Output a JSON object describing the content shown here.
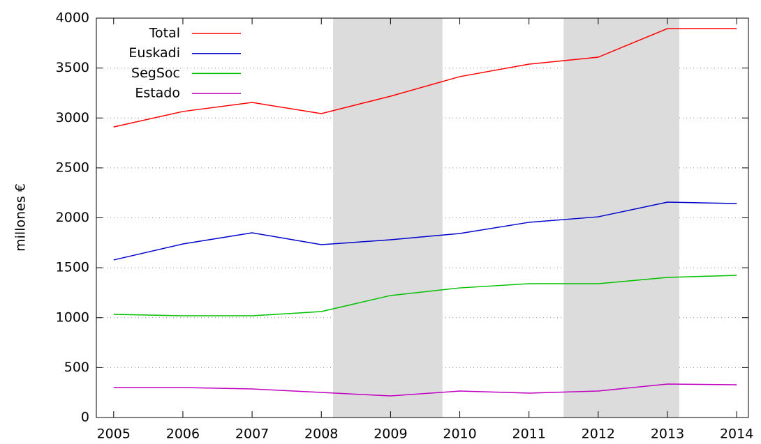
{
  "chart_data": {
    "type": "line",
    "y_label": "millones €",
    "x": [
      2005,
      2006,
      2007,
      2008,
      2009,
      2010,
      2011,
      2012,
      2013,
      2014
    ],
    "series": [
      {
        "name": "Total",
        "color": "#ff0000",
        "values": [
          2910,
          3065,
          3155,
          3044,
          3218,
          3414,
          3539,
          3609,
          3895,
          3895
        ]
      },
      {
        "name": "Euskadi",
        "color": "#0000cc",
        "values": [
          1578,
          1738,
          1850,
          1731,
          1780,
          1843,
          1955,
          2010,
          2157,
          2143
        ]
      },
      {
        "name": "SegSoc",
        "color": "#00c000",
        "values": [
          1033,
          1019,
          1019,
          1061,
          1222,
          1298,
          1340,
          1340,
          1403,
          1424
        ]
      },
      {
        "name": "Estado",
        "color": "#c000c0",
        "values": [
          300,
          300,
          286,
          251,
          216,
          265,
          244,
          265,
          335,
          328
        ]
      }
    ],
    "shaded_regions": [
      [
        2008.17,
        2009.75
      ],
      [
        2011.5,
        2013.17
      ]
    ],
    "shade_color": "#dcdcdc",
    "xlim": [
      2004.75,
      2014.17
    ],
    "xticks": [
      2005,
      2006,
      2007,
      2008,
      2009,
      2010,
      2011,
      2012,
      2013,
      2014
    ],
    "ylim": [
      0,
      4000
    ],
    "yticks": [
      0,
      500,
      1000,
      1500,
      2000,
      2500,
      3000,
      3500,
      4000
    ],
    "grid": true,
    "legend": "top-left"
  }
}
